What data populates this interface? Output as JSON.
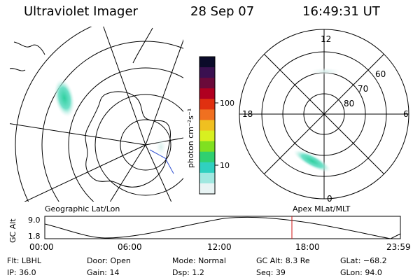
{
  "header": {
    "title": "Ultraviolet Imager",
    "date": "28 Sep 07",
    "time": "16:49:31 UT"
  },
  "colorbar": {
    "unit_label": "photon cm⁻²s⁻¹",
    "ticks": [
      "100",
      "10"
    ],
    "colors": [
      "#0b0b2a",
      "#3a1050",
      "#6a0a3a",
      "#b00020",
      "#e03010",
      "#f07020",
      "#f0c020",
      "#d8f020",
      "#80e020",
      "#30d070",
      "#30d0c0",
      "#a0e8e0",
      "#e8f4f4"
    ]
  },
  "map_geo": {
    "label": "Geographic Lat/Lon"
  },
  "map_apex": {
    "label": "Apex  MLat/MLT",
    "mlt_labels": [
      "12",
      "18",
      "6",
      "0"
    ],
    "mlat_labels": [
      "60",
      "70",
      "80"
    ]
  },
  "timeline": {
    "ylabel": "GC Alt",
    "yticks": [
      "9.0",
      "1.8"
    ],
    "xticks": [
      "00:00",
      "06:00",
      "12:00",
      "18:00",
      "23:59"
    ],
    "marker_color": "#d01010"
  },
  "info": {
    "flt_label": "Flt: LBHL",
    "door_label": "Door: Open",
    "mode_label": "Mode: Normal",
    "gcalt_label": "GC Alt: 8.3 Re",
    "glat_label": "GLat: −68.2",
    "ip_label": "IP: 36.0",
    "gain_label": "Gain: 14",
    "dsp_label": "Dsp:   1.2",
    "seq_label": "Seq: 39",
    "glon_label": "GLon:  94.0"
  }
}
